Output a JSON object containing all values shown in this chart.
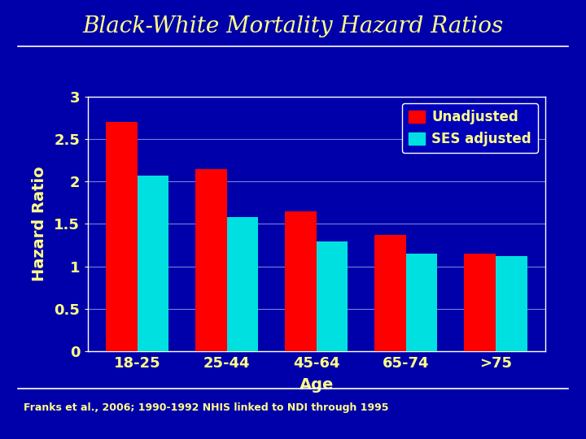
{
  "title": "Black-White Mortality Hazard Ratios",
  "xlabel": "Age",
  "ylabel": "Hazard Ratio",
  "categories": [
    "18-25",
    "25-44",
    "45-64",
    "65-74",
    ">75"
  ],
  "unadjusted": [
    2.7,
    2.15,
    1.65,
    1.37,
    1.15
  ],
  "ses_adjusted": [
    2.07,
    1.58,
    1.29,
    1.15,
    1.12
  ],
  "bar_color_unadjusted": "#ff0000",
  "bar_color_ses": "#00e0e0",
  "background_color": "#0000aa",
  "plot_bg_color": "#0000aa",
  "title_color": "#ffff88",
  "label_color": "#ffff88",
  "tick_color": "#ffff88",
  "axis_color": "#ffffff",
  "legend_bg_color": "#0000bb",
  "legend_text_color": "#ffff88",
  "legend_labels": [
    "Unadjusted",
    "SES adjusted"
  ],
  "ylim": [
    0,
    3
  ],
  "yticks": [
    0,
    0.5,
    1,
    1.5,
    2,
    2.5,
    3
  ],
  "ytick_labels": [
    "0",
    "0.5",
    "1",
    "1.5",
    "2",
    "2.5",
    "3"
  ],
  "footnote": "Franks et al., 2006; 1990-1992 NHIS linked to NDI through 1995",
  "title_fontsize": 20,
  "label_fontsize": 14,
  "tick_fontsize": 13,
  "legend_fontsize": 12,
  "footnote_fontsize": 9,
  "bar_width": 0.35
}
